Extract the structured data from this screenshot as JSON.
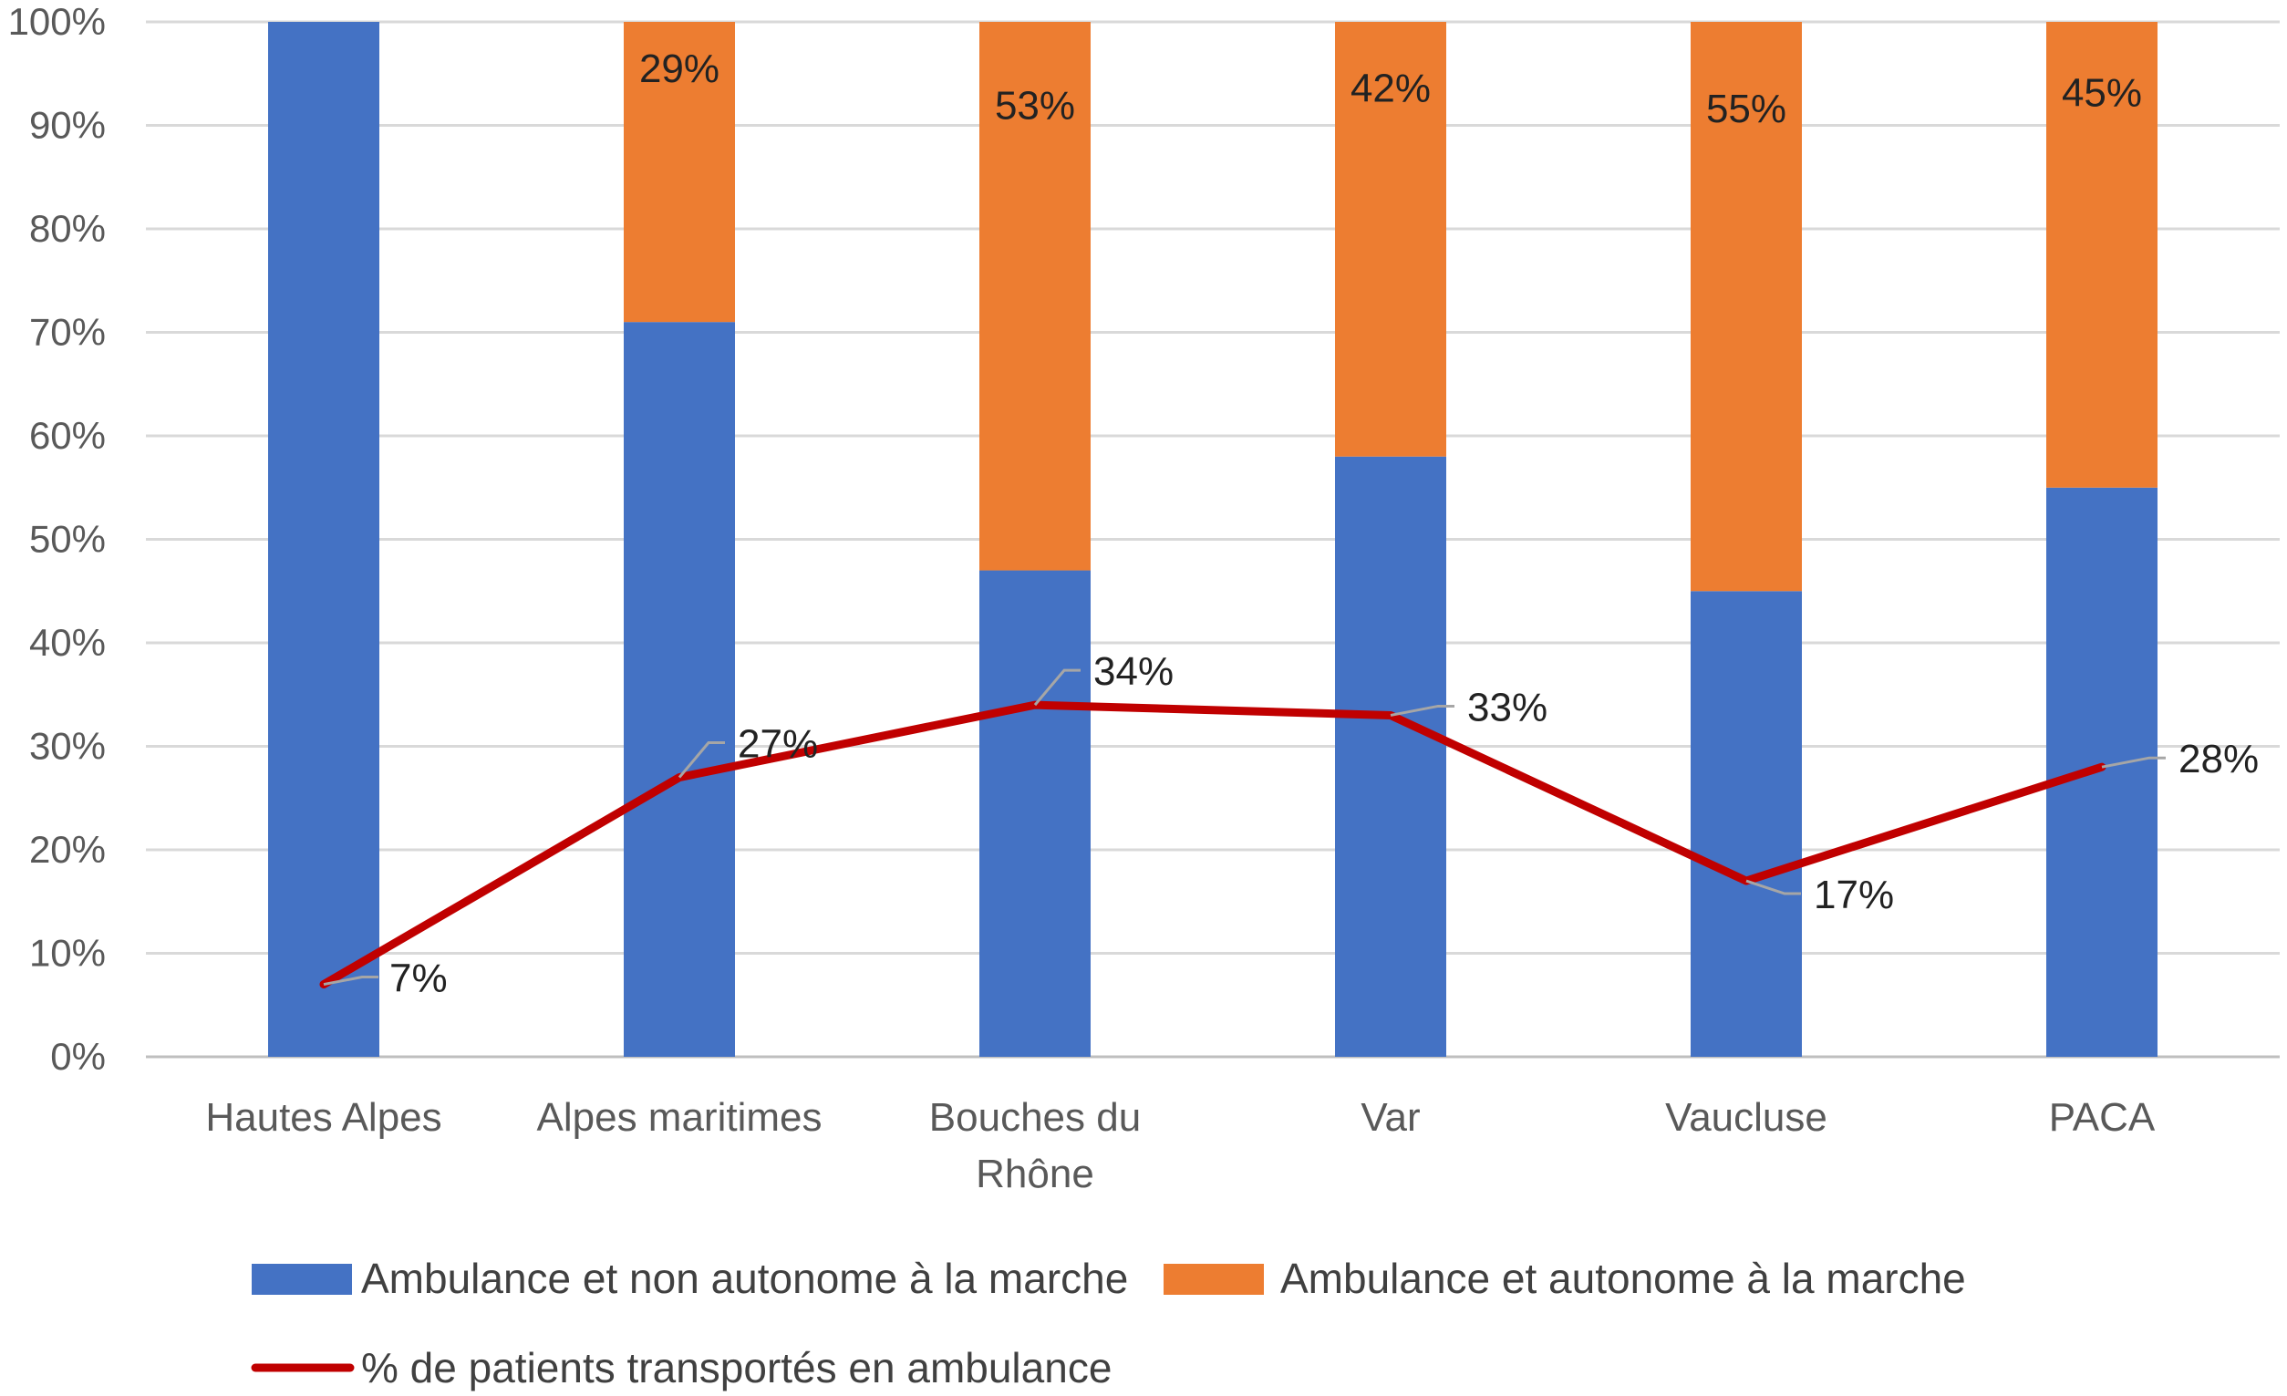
{
  "chart_data": {
    "type": "bar",
    "stacked": true,
    "title": "",
    "xlabel": "",
    "ylabel": "",
    "ylim": [
      0,
      100
    ],
    "y_ticks": [
      "0%",
      "10%",
      "20%",
      "30%",
      "40%",
      "50%",
      "60%",
      "70%",
      "80%",
      "90%",
      "100%"
    ],
    "grid": true,
    "categories": [
      [
        "Hautes Alpes"
      ],
      [
        "Alpes maritimes"
      ],
      [
        "Bouches du",
        "Rhône"
      ],
      [
        "Var"
      ],
      [
        "Vaucluse"
      ],
      [
        "PACA"
      ]
    ],
    "series": [
      {
        "name": "Ambulance et non autonome à la marche",
        "kind": "bar",
        "color": "#4472C4",
        "values": [
          100,
          71,
          47,
          58,
          45,
          55
        ],
        "labels": [
          "",
          "",
          "",
          "",
          "",
          ""
        ]
      },
      {
        "name": "Ambulance et  autonome à la marche",
        "kind": "bar",
        "color": "#ED7D31",
        "values": [
          0,
          29,
          53,
          42,
          55,
          45
        ],
        "labels": [
          "",
          "29%",
          "53%",
          "42%",
          "55%",
          "45%"
        ]
      },
      {
        "name": "% de patients transportés en ambulance",
        "kind": "line",
        "color": "#C00000",
        "values": [
          7,
          27,
          34,
          33,
          17,
          28
        ],
        "labels": [
          "7%",
          "27%",
          "34%",
          "33%",
          "17%",
          "28%"
        ]
      }
    ],
    "legend": "bottom"
  }
}
